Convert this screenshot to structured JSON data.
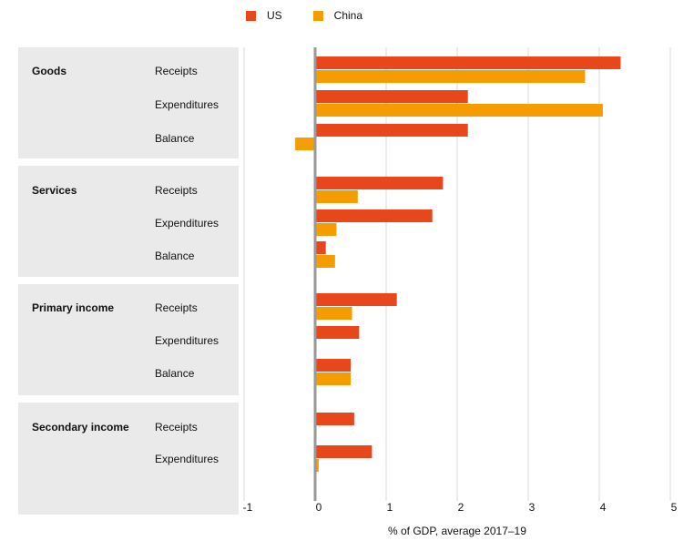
{
  "legend": [
    {
      "name": "US",
      "color": "#e8471c"
    },
    {
      "name": "China",
      "color": "#f59c00"
    }
  ],
  "chart_data": {
    "type": "bar",
    "orientation": "horizontal",
    "xlabel": "% of GDP, average 2017–19",
    "xlim": [
      -1,
      5
    ],
    "xticks": [
      "-1",
      "0",
      "1",
      "2",
      "3",
      "4",
      "5"
    ],
    "groups": [
      {
        "category": "Goods",
        "rows": [
          {
            "label": "Receipts",
            "US": 4.3,
            "China": 3.8
          },
          {
            "label": "Expenditures",
            "US": 2.15,
            "China": 4.05
          },
          {
            "label": "Balance",
            "US": 2.15,
            "China": -0.28
          }
        ]
      },
      {
        "category": "Services",
        "rows": [
          {
            "label": "Receipts",
            "US": 1.8,
            "China": 0.6
          },
          {
            "label": "Expenditures",
            "US": 1.65,
            "China": 0.3
          },
          {
            "label": "Balance",
            "US": 0.15,
            "China": 0.28
          }
        ]
      },
      {
        "category": "Primary income",
        "rows": [
          {
            "label": "Receipts",
            "US": 1.15,
            "China": 0.52
          },
          {
            "label": "Expenditures",
            "US": 0.62,
            "China": 0.02
          },
          {
            "label": "Balance",
            "US": 0.5,
            "China": 0.5
          }
        ]
      },
      {
        "category": "Secondary income",
        "rows": [
          {
            "label": "Receipts",
            "US": 0.55,
            "China": 0.02
          },
          {
            "label": "Expenditures",
            "US": 0.8,
            "China": 0.05
          }
        ]
      }
    ]
  }
}
